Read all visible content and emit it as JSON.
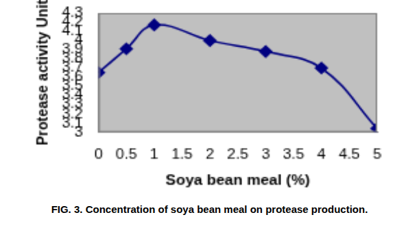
{
  "chart_data": {
    "type": "line",
    "title": "FIG. 3. Concentration of soya bean meal on protease production.",
    "x_label": "Soya bean meal (%)",
    "y_label": "Protease activity Unit",
    "x": [
      0,
      0.5,
      1,
      2,
      3,
      4,
      5
    ],
    "values": [
      3.65,
      3.91,
      4.17,
      4.0,
      3.88,
      3.7,
      3.04
    ],
    "color": "#000080",
    "marker": "diamond",
    "line_style": "solid",
    "xlim": [
      0,
      5
    ],
    "xticks": [
      0,
      0.5,
      1,
      1.5,
      2,
      2.5,
      3,
      3.5,
      4,
      4.5,
      5
    ],
    "ylim": [
      3,
      4.3
    ],
    "yticks": [
      3,
      3.1,
      3.2,
      3.3,
      3.4,
      3.5,
      3.6,
      3.7,
      3.8,
      3.9,
      4,
      4.1,
      4.2,
      4.3
    ],
    "grid": false
  }
}
